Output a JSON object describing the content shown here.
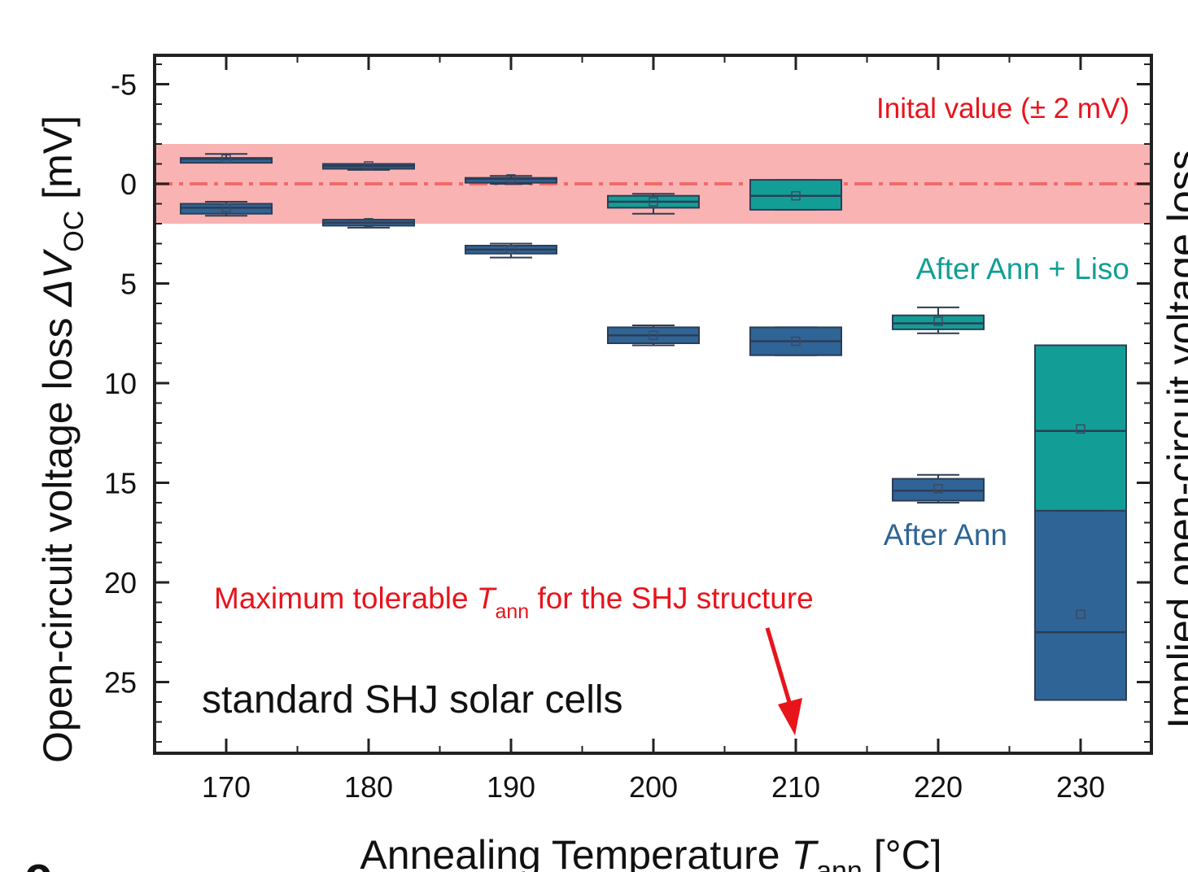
{
  "chart_data": {
    "type": "box",
    "xlabel": "Annealing Temperature",
    "xlabel_sym": "T",
    "xlabel_sub": "ann",
    "xlabel_unit": " [°C]",
    "ylabel": "Open-circuit voltage loss ",
    "ylabel_sym": "ΔV",
    "ylabel_sub": "OC",
    "ylabel_unit": " [mV]",
    "right_ylabel": "Implied open-circuit voltage loss",
    "x_ticks": [
      "170",
      "180",
      "190",
      "200",
      "210",
      "220",
      "230"
    ],
    "y_ticks": [
      "-5",
      "0",
      "5",
      "10",
      "15",
      "20",
      "25"
    ],
    "y_axis_inverted": true,
    "ylim": [
      -6.5,
      28.5
    ],
    "xlim": [
      165,
      235
    ],
    "panel_label": "c",
    "initial_band": {
      "label": "Inital value (± 2 mV)",
      "low": -2,
      "high": 2,
      "color": "#f9b3b3",
      "line_color": "#f06a6a"
    },
    "colors": {
      "after_ann": "#2f6496",
      "after_ann_liso": "#129e97",
      "annotation_red": "#e8141c",
      "axis": "#222222"
    },
    "series": [
      {
        "name": "After Ann",
        "color": "#2f6496",
        "boxes": [
          {
            "x": 170,
            "whisker_low": -1.5,
            "q1": -1.3,
            "median": -1.25,
            "q3": -1.2,
            "whisker_high": -1.1,
            "mean": -1.25
          },
          {
            "x": 170,
            "whisker_low": 0.9,
            "q1": 1.0,
            "median": 1.2,
            "q3": 1.5,
            "whisker_high": 1.6,
            "mean": 1.2
          },
          {
            "x": 180,
            "whisker_low": -1.0,
            "q1": -1.0,
            "median": -0.9,
            "q3": -0.8,
            "whisker_high": -0.7,
            "mean": -0.9
          },
          {
            "x": 180,
            "whisker_low": 1.8,
            "q1": 1.8,
            "median": 1.95,
            "q3": 2.1,
            "whisker_high": 2.2,
            "mean": 1.95
          },
          {
            "x": 190,
            "whisker_low": -0.4,
            "q1": -0.3,
            "median": -0.25,
            "q3": -0.1,
            "whisker_high": 0.0,
            "mean": -0.25
          },
          {
            "x": 190,
            "whisker_low": 3.0,
            "q1": 3.1,
            "median": 3.3,
            "q3": 3.5,
            "whisker_high": 3.7,
            "mean": 3.3
          },
          {
            "x": 200,
            "whisker_low": 7.1,
            "q1": 7.2,
            "median": 7.6,
            "q3": 8.0,
            "whisker_high": 8.1,
            "mean": 7.6
          },
          {
            "x": 210,
            "whisker_low": 7.2,
            "q1": 7.2,
            "median": 7.9,
            "q3": 8.6,
            "whisker_high": 8.6,
            "mean": 7.9
          },
          {
            "x": 220,
            "whisker_low": 14.6,
            "q1": 14.8,
            "median": 15.4,
            "q3": 15.9,
            "whisker_high": 16.0,
            "mean": 15.3
          },
          {
            "x": 230,
            "whisker_low": 16.4,
            "q1": 16.4,
            "median": 22.5,
            "q3": 25.9,
            "whisker_high": 25.9,
            "mean": 21.6
          }
        ]
      },
      {
        "name": "After Ann + Liso",
        "color": "#129e97",
        "boxes": [
          {
            "x": 200,
            "whisker_low": 0.5,
            "q1": 0.6,
            "median": 0.9,
            "q3": 1.2,
            "whisker_high": 1.5,
            "mean": 0.9
          },
          {
            "x": 210,
            "whisker_low": -0.2,
            "q1": -0.2,
            "median": 0.6,
            "q3": 1.3,
            "whisker_high": 1.3,
            "mean": 0.6
          },
          {
            "x": 220,
            "whisker_low": 6.2,
            "q1": 6.6,
            "median": 7.0,
            "q3": 7.3,
            "whisker_high": 7.5,
            "mean": 6.9
          },
          {
            "x": 230,
            "whisker_low": 8.1,
            "q1": 8.1,
            "median": 12.4,
            "q3": 16.4,
            "whisker_high": 16.4,
            "mean": 12.3
          }
        ]
      }
    ],
    "annotations": {
      "liso_label": "After Ann + Liso",
      "ann_label": "After Ann",
      "max_label_pre": "Maximum tolerable ",
      "max_label_sym": "T",
      "max_label_sub": "ann",
      "max_label_post": " for the SHJ structure",
      "max_arrow_x": 210,
      "sample_label": "standard SHJ solar cells"
    }
  }
}
